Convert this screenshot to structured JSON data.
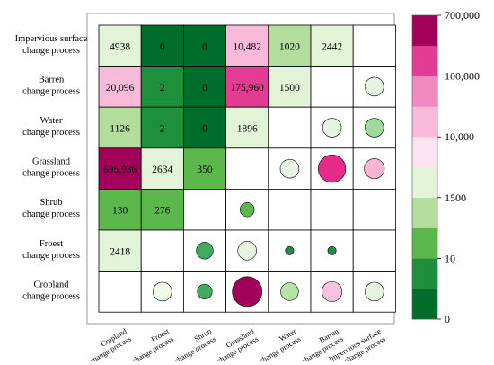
{
  "chart_data": {
    "type": "heatmap",
    "title": "",
    "rows": [
      "Impervious surface change process",
      "Barren change process",
      "Water change process",
      "Grassland change process",
      "Shrub change process",
      "Froest change process",
      "Cropland change process"
    ],
    "row_labels": [
      [
        "Impervious surface",
        "change process"
      ],
      [
        "Barren",
        "change process"
      ],
      [
        "Water",
        "change process"
      ],
      [
        "Grassland",
        "change process"
      ],
      [
        "Shrub",
        "change process"
      ],
      [
        "Froest",
        "change process"
      ],
      [
        "Cropland",
        "change process"
      ]
    ],
    "columns": [
      "Cropland change process",
      "Froest change process",
      "Shrub change process",
      "Grassland change process",
      "Water change process",
      "Barren change process",
      "Impervious surface change process"
    ],
    "column_labels": [
      [
        "Cropland",
        "change process"
      ],
      [
        "Froest",
        "change process"
      ],
      [
        "Shrub",
        "change process"
      ],
      [
        "Grassland",
        "change process"
      ],
      [
        "Water",
        "change process"
      ],
      [
        "Barren",
        "change process"
      ],
      [
        "Impervious surface",
        "change process"
      ]
    ],
    "value_cells": [
      {
        "row": 0,
        "col": 0,
        "label": "4938",
        "value": 4938
      },
      {
        "row": 0,
        "col": 1,
        "label": "0",
        "value": 0
      },
      {
        "row": 0,
        "col": 2,
        "label": "0",
        "value": 0
      },
      {
        "row": 0,
        "col": 3,
        "label": "10,482",
        "value": 10482
      },
      {
        "row": 0,
        "col": 4,
        "label": "1020",
        "value": 1020
      },
      {
        "row": 0,
        "col": 5,
        "label": "2442",
        "value": 2442
      },
      {
        "row": 1,
        "col": 0,
        "label": "20,096",
        "value": 20096
      },
      {
        "row": 1,
        "col": 1,
        "label": "2",
        "value": 2
      },
      {
        "row": 1,
        "col": 2,
        "label": "0",
        "value": 0
      },
      {
        "row": 1,
        "col": 3,
        "label": "175,960",
        "value": 175960
      },
      {
        "row": 1,
        "col": 4,
        "label": "1500",
        "value": 1500
      },
      {
        "row": 2,
        "col": 0,
        "label": "1126",
        "value": 1126
      },
      {
        "row": 2,
        "col": 1,
        "label": "2",
        "value": 2
      },
      {
        "row": 2,
        "col": 2,
        "label": "0",
        "value": 0
      },
      {
        "row": 2,
        "col": 3,
        "label": "1896",
        "value": 1896
      },
      {
        "row": 3,
        "col": 0,
        "label": "695,936",
        "value": 695936
      },
      {
        "row": 3,
        "col": 1,
        "label": "2634",
        "value": 2634
      },
      {
        "row": 3,
        "col": 2,
        "label": "350",
        "value": 350
      },
      {
        "row": 4,
        "col": 0,
        "label": "130",
        "value": 130
      },
      {
        "row": 4,
        "col": 1,
        "label": "276",
        "value": 276
      },
      {
        "row": 5,
        "col": 0,
        "label": "2418",
        "value": 2418
      }
    ],
    "circle_cells": [
      {
        "row": 1,
        "col": 6,
        "magnitude": 0.58,
        "color": "#e5f5e0"
      },
      {
        "row": 2,
        "col": 5,
        "magnitude": 0.58,
        "color": "#e5f5e0"
      },
      {
        "row": 2,
        "col": 6,
        "magnitude": 0.58,
        "color": "#a1d99b"
      },
      {
        "row": 3,
        "col": 4,
        "magnitude": 0.58,
        "color": "#e5f5e0"
      },
      {
        "row": 3,
        "col": 5,
        "magnitude": 0.85,
        "color": "#e7298a"
      },
      {
        "row": 3,
        "col": 6,
        "magnitude": 0.62,
        "color": "#f7b6d2"
      },
      {
        "row": 4,
        "col": 3,
        "magnitude": 0.44,
        "color": "#5fb84e"
      },
      {
        "row": 5,
        "col": 2,
        "magnitude": 0.52,
        "color": "#41ab5d"
      },
      {
        "row": 5,
        "col": 3,
        "magnitude": 0.58,
        "color": "#e5f5e0"
      },
      {
        "row": 5,
        "col": 4,
        "magnitude": 0.26,
        "color": "#238b45"
      },
      {
        "row": 5,
        "col": 5,
        "magnitude": 0.26,
        "color": "#238b45"
      },
      {
        "row": 6,
        "col": 1,
        "magnitude": 0.58,
        "color": "#f0f9e8"
      },
      {
        "row": 6,
        "col": 2,
        "magnitude": 0.46,
        "color": "#41ab5d"
      },
      {
        "row": 6,
        "col": 3,
        "magnitude": 0.92,
        "color": "#a3005a"
      },
      {
        "row": 6,
        "col": 4,
        "magnitude": 0.55,
        "color": "#b8e3a8"
      },
      {
        "row": 6,
        "col": 5,
        "magnitude": 0.62,
        "color": "#fbc2dd"
      },
      {
        "row": 6,
        "col": 6,
        "magnitude": 0.58,
        "color": "#e5f5e0"
      }
    ],
    "color_scale": {
      "colors": [
        "#006d2c",
        "#1e8f3a",
        "#5cb84c",
        "#b3dd9c",
        "#e3f3d8",
        "#fbe3ef",
        "#f9b9d9",
        "#f18ac0",
        "#e33c93",
        "#a3005a"
      ],
      "tick_labels": [
        "0",
        "10",
        "1500",
        "10,000",
        "100,000",
        "700,000"
      ],
      "tick_bands": [
        0,
        2,
        4,
        6,
        8,
        10
      ]
    }
  }
}
